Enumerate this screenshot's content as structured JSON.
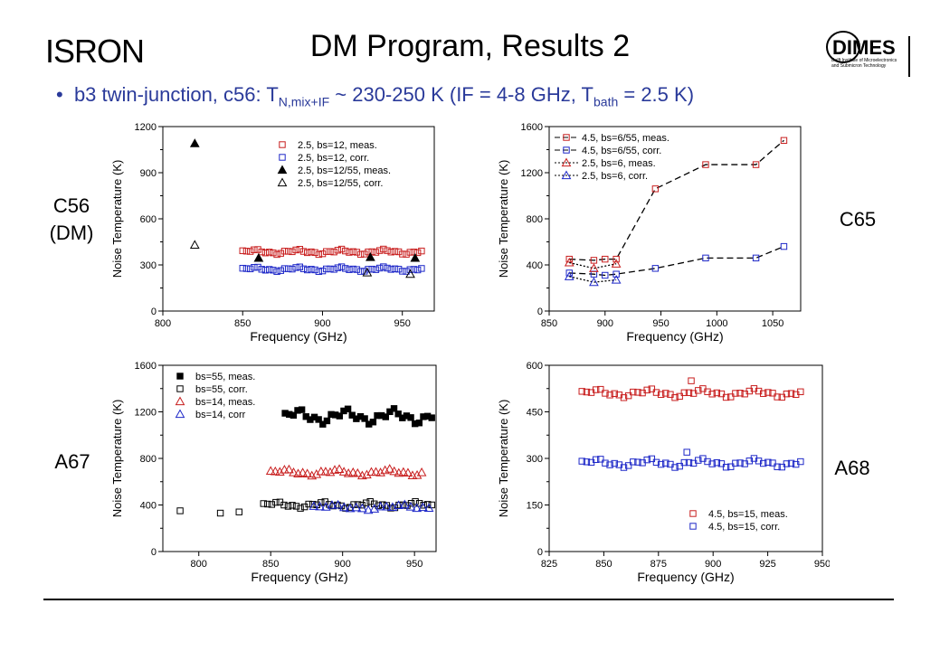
{
  "header": {
    "logo_text": "ISRON",
    "title": "DM Program, Results 2",
    "logo_right_text": "DIMES",
    "logo_right_small1": "Delft Institute of Microelectronics",
    "logo_right_small2": "and Submicron Technology"
  },
  "subtitle": {
    "bullet": "•",
    "pre": "b3 twin-junction, c56:  T",
    "sub1": "N,mix+IF",
    "mid": " ~ 230-250 K (IF = 4-8 GHz, T",
    "sub2": "bath",
    "post": " = 2.5 K)"
  },
  "panel_labels": {
    "c56": "C56",
    "c56_sub": "(DM)",
    "c65": "C65",
    "a67": "A67",
    "a68": "A68"
  },
  "colors": {
    "red": "#c81e1e",
    "blue": "#1e28c8",
    "black": "#000000"
  },
  "chart_data": [
    {
      "type": "scatter",
      "id": "c56",
      "xlabel": "Frequency (GHz)",
      "ylabel": "Noise Temperature (K)",
      "xlim": [
        800,
        970
      ],
      "ylim": [
        0,
        1200
      ],
      "xticks": [
        800,
        850,
        900,
        950
      ],
      "yticks": [
        0,
        300,
        600,
        900,
        1200
      ],
      "legend_position": "top-right",
      "series": [
        {
          "name": "2.5, bs=12, meas.",
          "marker": "square-open",
          "color": "#c81e1e",
          "dense_x": [
            850,
            962,
            48
          ],
          "base": 385,
          "amp": 18,
          "points": []
        },
        {
          "name": "2.5, bs=12, corr.",
          "marker": "square-open",
          "color": "#1e28c8",
          "dense_x": [
            850,
            962,
            48
          ],
          "base": 272,
          "amp": 16,
          "points": []
        },
        {
          "name": "2.5, bs=12/55, meas.",
          "marker": "triangle-filled",
          "color": "#000000",
          "points": [
            [
              820,
              1090
            ],
            [
              860,
              345
            ],
            [
              930,
              350
            ],
            [
              958,
              345
            ]
          ]
        },
        {
          "name": "2.5, bs=12/55, corr.",
          "marker": "triangle-open",
          "color": "#000000",
          "points": [
            [
              820,
              430
            ],
            [
              928,
              250
            ],
            [
              955,
              240
            ]
          ]
        }
      ]
    },
    {
      "type": "scatter",
      "id": "c65",
      "xlabel": "Frequency (GHz)",
      "ylabel": "Noise Temperature (K)",
      "xlim": [
        850,
        1075
      ],
      "ylim": [
        0,
        1600
      ],
      "xticks": [
        850,
        900,
        950,
        1000,
        1050
      ],
      "yticks": [
        0,
        400,
        800,
        1200,
        1600
      ],
      "legend_position": "top-left",
      "series": [
        {
          "name": "4.5, bs=6/55, meas.",
          "marker": "square-open",
          "color": "#c81e1e",
          "line": "dashed",
          "points": [
            [
              868,
              450
            ],
            [
              890,
              440
            ],
            [
              900,
              450
            ],
            [
              910,
              450
            ],
            [
              945,
              1060
            ],
            [
              990,
              1270
            ],
            [
              1035,
              1270
            ],
            [
              1060,
              1480
            ]
          ]
        },
        {
          "name": "4.5, bs=6/55, corr.",
          "marker": "square-open",
          "color": "#1e28c8",
          "line": "dashed",
          "points": [
            [
              868,
              330
            ],
            [
              890,
              320
            ],
            [
              900,
              310
            ],
            [
              910,
              320
            ],
            [
              945,
              370
            ],
            [
              990,
              460
            ],
            [
              1035,
              460
            ],
            [
              1060,
              560
            ]
          ]
        },
        {
          "name": "2.5, bs=6, meas.",
          "marker": "triangle-open",
          "color": "#c81e1e",
          "line": "dotted",
          "points": [
            [
              868,
              420
            ],
            [
              890,
              370
            ],
            [
              910,
              410
            ]
          ]
        },
        {
          "name": "2.5, bs=6, corr.",
          "marker": "triangle-open",
          "color": "#1e28c8",
          "line": "dotted",
          "points": [
            [
              868,
              300
            ],
            [
              890,
              250
            ],
            [
              910,
              270
            ]
          ]
        }
      ]
    },
    {
      "type": "scatter",
      "id": "a67",
      "xlabel": "Frequency (GHz)",
      "ylabel": "Noise Temperature (K)",
      "xlim": [
        775,
        965
      ],
      "ylim": [
        0,
        1600
      ],
      "xticks": [
        800,
        850,
        900,
        950
      ],
      "yticks": [
        0,
        400,
        800,
        1200,
        1600
      ],
      "legend_position": "top-left",
      "series": [
        {
          "name": "bs=55, meas.",
          "marker": "square-filled",
          "color": "#000000",
          "dense_x": [
            860,
            962,
            36
          ],
          "base": 1160,
          "amp": 70,
          "points": []
        },
        {
          "name": "bs=55, corr.",
          "marker": "square-open",
          "color": "#000000",
          "dense_x": [
            845,
            962,
            42
          ],
          "base": 400,
          "amp": 30,
          "points": [
            [
              787,
              350
            ],
            [
              815,
              330
            ],
            [
              828,
              340
            ]
          ]
        },
        {
          "name": "bs=14, meas.",
          "marker": "triangle-open",
          "color": "#c81e1e",
          "dense_x": [
            850,
            955,
            34
          ],
          "base": 680,
          "amp": 30,
          "points": []
        },
        {
          "name": "bs=14, corr",
          "marker": "triangle-open",
          "color": "#1e28c8",
          "dense_x": [
            880,
            960,
            20
          ],
          "base": 380,
          "amp": 25,
          "points": []
        }
      ]
    },
    {
      "type": "scatter",
      "id": "a68",
      "xlabel": "Frequency (GHz)",
      "ylabel": "Noise Temperature (K)",
      "xlim": [
        825,
        950
      ],
      "ylim": [
        0,
        600
      ],
      "xticks": [
        825,
        850,
        875,
        900,
        925,
        950
      ],
      "yticks": [
        0,
        150,
        300,
        450,
        600
      ],
      "legend_position": "bottom-right",
      "series": [
        {
          "name": "4.5, bs=15, meas.",
          "marker": "square-open",
          "color": "#c81e1e",
          "dense_x": [
            840,
            940,
            48
          ],
          "base": 510,
          "amp": 15,
          "points": [
            [
              890,
              550
            ]
          ]
        },
        {
          "name": "4.5, bs=15, corr.",
          "marker": "square-open",
          "color": "#1e28c8",
          "dense_x": [
            840,
            940,
            48
          ],
          "base": 285,
          "amp": 15,
          "points": [
            [
              888,
              320
            ]
          ]
        }
      ]
    }
  ]
}
